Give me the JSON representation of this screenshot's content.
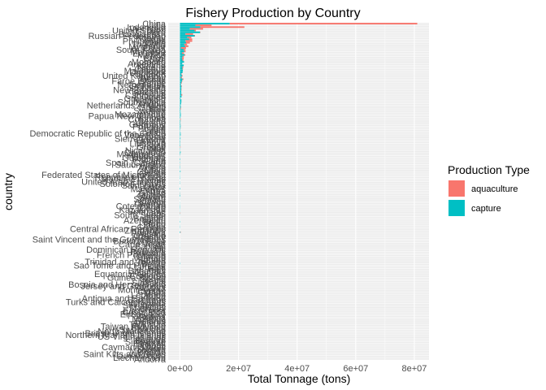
{
  "chart_data": {
    "type": "bar",
    "orientation": "horizontal",
    "stacked": true,
    "title": "Fishery Production by Country",
    "xlabel": "Total Tonnage (tons)",
    "ylabel": "country",
    "xlim": [
      -4000000,
      85000000
    ],
    "x_ticks": [
      0,
      20000000,
      40000000,
      60000000,
      80000000
    ],
    "x_tick_labels": [
      "0e+00",
      "2e+07",
      "4e+07",
      "6e+07",
      "8e+07"
    ],
    "grid": true,
    "legend_position": "right",
    "legend": {
      "title": "Production Type",
      "entries": [
        {
          "name": "aquaculture",
          "color": "#F8766D"
        },
        {
          "name": "capture",
          "color": "#00BFC4"
        }
      ]
    },
    "colors": {
      "aquaculture": "#F8766D",
      "capture": "#00BFC4",
      "panel": "#EBEBEB",
      "grid": "#FFFFFF"
    },
    "categories": [
      "China",
      "India",
      "Indonesia",
      "Viet Nam",
      "United States",
      "Peru",
      "Bangladesh",
      "Russian Federation",
      "Norway",
      "Japan",
      "Philippines",
      "Chile",
      "Thailand",
      "Myanmar",
      "Egypt",
      "South Korea",
      "Malaysia",
      "Ecuador",
      "Mexico",
      "Iran",
      "Brazil",
      "Spain",
      "Morocco",
      "Argentina",
      "Iceland",
      "Nigeria",
      "Canada",
      "Mauritania",
      "Denmark",
      "Uganda",
      "United Kingdom",
      "Turkey",
      "Taiwan",
      "Faroe Islands",
      "France",
      "Netherlands",
      "Pakistan",
      "Sri Lanka",
      "New Zealand",
      "Tanzania",
      "Senegal",
      "Cambodia",
      "Oman",
      "Greenland",
      "Namibia",
      "South Africa",
      "Angola",
      "Netherlands Antilles",
      "Ghana",
      "Italy",
      "Sweden",
      "Yemen",
      "Mozambique",
      "Papua New Guinea",
      "Kiribati",
      "Colombia",
      "Ireland",
      "Ukraine",
      "Germany",
      "Portugal",
      "Poland",
      "Chad",
      "Latvia",
      "Democratic Republic of the Congo",
      "Venezuela",
      "Uruguay",
      "Sierra Leone",
      "Estonia",
      "Kenya",
      "Lithuania",
      "Finland",
      "Greece",
      "Mali",
      "Nicaragua",
      "Cameroon",
      "Madagascar",
      "Honduras",
      "Guatemala",
      "Panama",
      "Cuba",
      "Spain (Canary)",
      "Saudi Arabia",
      "Tunisia",
      "Algeria",
      "Libya",
      "Guinea",
      "Gabon",
      "Federated States of Micronesia",
      "Republic of Korea",
      "Marshall Islands",
      "Tuvalu",
      "United Arab Emirates",
      "Solomon Islands",
      "Saint Lucia",
      "Qatar",
      "Maldives",
      "Eritrea",
      "Iraq",
      "Zambia",
      "Malawi",
      "Sudan",
      "Somalia",
      "Kuwait",
      "Guyana",
      "Georgia",
      "Cote d'Ivoire",
      "Congo",
      "Kazakhstan",
      "Suriname",
      "Laos",
      "South Sudan",
      "Israel",
      "Belgium",
      "Azerbaijan",
      "Benin",
      "Togo",
      "Liberia",
      "Croatia",
      "Central African Republic",
      "Zimbabwe",
      "Australia",
      "Austria",
      "Czechia",
      "Hungary",
      "Saint Vincent and the Grenadines",
      "Burkina Faso",
      "Niger",
      "Cape Verde",
      "Bahrain",
      "Fiji",
      "Dominican Republic",
      "Romania",
      "Bulgaria",
      "French Polynesia",
      "Tonga",
      "Vanuatu",
      "Samoa",
      "Trinidad and Tobago",
      "Belize",
      "Sao Tome and Principe",
      "Jamaica",
      "Haiti",
      "Bahamas",
      "Gambia",
      "Equatorial Guinea",
      "Comoros",
      "Guinea-Bissau",
      "Serbia",
      "Nepal",
      "Slovakia",
      "Bosnia and Herzegovina",
      "Jersey and Guernsey",
      "Albania",
      "Montenegro",
      "Cyprus",
      "Malta",
      "Lebanon",
      "Syria",
      "Antigua and Barbuda",
      "Barbados",
      "Turks and Caicos Islands",
      "Grenada",
      "Seychelles",
      "Mauritius",
      "Brunei",
      "East Timor",
      "Costa Rica",
      "El Salvador",
      "Paraguay",
      "Bolivia",
      "Moldova",
      "Belarus",
      "Armenia",
      "Tajikistan",
      "Taiwan Province",
      "Slovenia",
      "Switzerland",
      "North Macedonia",
      "British Virgin Islands",
      "Northern Mariana Islands",
      "US Virgin Islands",
      "Rwanda",
      "Burundi",
      "Singapore",
      "Ethiopia",
      "Djibouti",
      "Cayman Islands",
      "Nauru",
      "Mongolia",
      "Bhutan",
      "Saint Kitts and Nevis",
      "Luxembourg",
      "Liechtenstein",
      "Andorra"
    ],
    "series": [
      {
        "name": "aquaculture",
        "values": [
          64000000,
          5500000,
          15000000,
          4500000,
          450000,
          90000,
          2600000,
          150000,
          1400000,
          1000000,
          2300000,
          1300000,
          950000,
          1100000,
          1700000,
          600000,
          450000,
          650000,
          250000,
          450000,
          600000,
          300000,
          15000,
          3500,
          7000,
          300000,
          190000,
          0,
          40000,
          120000,
          200000,
          350000,
          280000,
          100000,
          180000,
          50000,
          150000,
          30000,
          110000,
          10000,
          1000,
          300000,
          500,
          0,
          100,
          10000,
          1000,
          0,
          70000,
          150000,
          10000,
          0,
          1000,
          10,
          0,
          180000,
          40000,
          20000,
          25000,
          10000,
          40000,
          0,
          500,
          3000,
          5000,
          100,
          100,
          1000,
          20000,
          3000,
          15000,
          130000,
          3000,
          30000,
          3000,
          8000,
          20000,
          30000,
          4000,
          30000,
          0,
          50000,
          20000,
          4000,
          1000,
          1000,
          0,
          0,
          0,
          0,
          0,
          3000,
          1000,
          0,
          1000,
          0,
          0,
          20000,
          30000,
          10000,
          0,
          0,
          500,
          500,
          1000,
          2000,
          100,
          1000,
          500,
          100000,
          0,
          20000,
          500,
          1000,
          500,
          1000,
          100,
          10000,
          0,
          10000,
          100000,
          3000,
          20000,
          20000,
          0,
          1000,
          100,
          0,
          200,
          1000,
          1000,
          10000,
          10000,
          1000,
          0,
          0,
          0,
          0,
          1000,
          0,
          0,
          1000,
          0,
          0,
          0,
          0,
          0,
          8000,
          50000,
          1000,
          2000,
          0,
          5000,
          1000,
          3000,
          6000,
          1000,
          5000,
          0,
          0,
          0,
          0,
          0,
          1000,
          0,
          0,
          20000,
          8000,
          20000,
          1000,
          5000,
          10000,
          15000,
          2000,
          0,
          2000,
          1000,
          1000,
          0,
          0,
          0,
          1000,
          1000,
          5000,
          1000,
          0,
          0,
          0,
          0,
          0,
          0,
          0,
          0,
          0
        ]
      },
      {
        "name": "capture",
        "values": [
          17000000,
          5300000,
          7000000,
          3400000,
          5000000,
          6900000,
          1900000,
          5000000,
          2500000,
          3200000,
          1900000,
          2100000,
          1500000,
          1800000,
          380000,
          1300000,
          1500000,
          700000,
          1600000,
          900000,
          700000,
          900000,
          1400000,
          800000,
          1300000,
          850000,
          850000,
          1000000,
          900000,
          500000,
          700000,
          350000,
          900000,
          700000,
          500000,
          350000,
          500000,
          500000,
          450000,
          450000,
          480000,
          500000,
          550000,
          230000,
          500000,
          500000,
          400000,
          250000,
          320000,
          200000,
          200000,
          220000,
          300000,
          300000,
          200000,
          100000,
          200000,
          150000,
          200000,
          250000,
          200000,
          120000,
          100000,
          230000,
          250000,
          100000,
          200000,
          100000,
          150000,
          100000,
          150000,
          70000,
          100000,
          60000,
          250000,
          150000,
          50000,
          30000,
          150000,
          50000,
          100000,
          50000,
          100000,
          100000,
          40000,
          200000,
          50000,
          60000,
          70000,
          100000,
          10000,
          70000,
          80000,
          2000,
          20000,
          150000,
          6000,
          60000,
          80000,
          150000,
          30000,
          50000,
          5000,
          50000,
          40000,
          90000,
          80000,
          40000,
          50000,
          70000,
          50000,
          2000,
          25000,
          30000,
          100000,
          20000,
          40000,
          80000,
          30000,
          10000,
          200000,
          500,
          5000,
          10000,
          3000,
          20000,
          30000,
          10000,
          20000,
          40000,
          10000,
          4000,
          4000,
          10000,
          3000,
          20000,
          5000,
          15000,
          100000,
          10000,
          20000,
          20000,
          10000,
          60000,
          10000,
          20000,
          10000,
          3000,
          20000,
          2000,
          1000,
          2000,
          4000,
          5000,
          2000,
          2000,
          3000,
          3000,
          2000,
          2000,
          5000,
          2000,
          7000,
          15000,
          3000,
          3000,
          20000,
          40000,
          30000,
          5000,
          2000,
          1000,
          1000,
          20000,
          0,
          500,
          1000,
          100,
          1000,
          500,
          1000,
          10000,
          10000,
          1000,
          20000,
          2000,
          1000,
          500,
          100,
          100,
          50,
          100,
          50,
          10
        ]
      }
    ]
  }
}
